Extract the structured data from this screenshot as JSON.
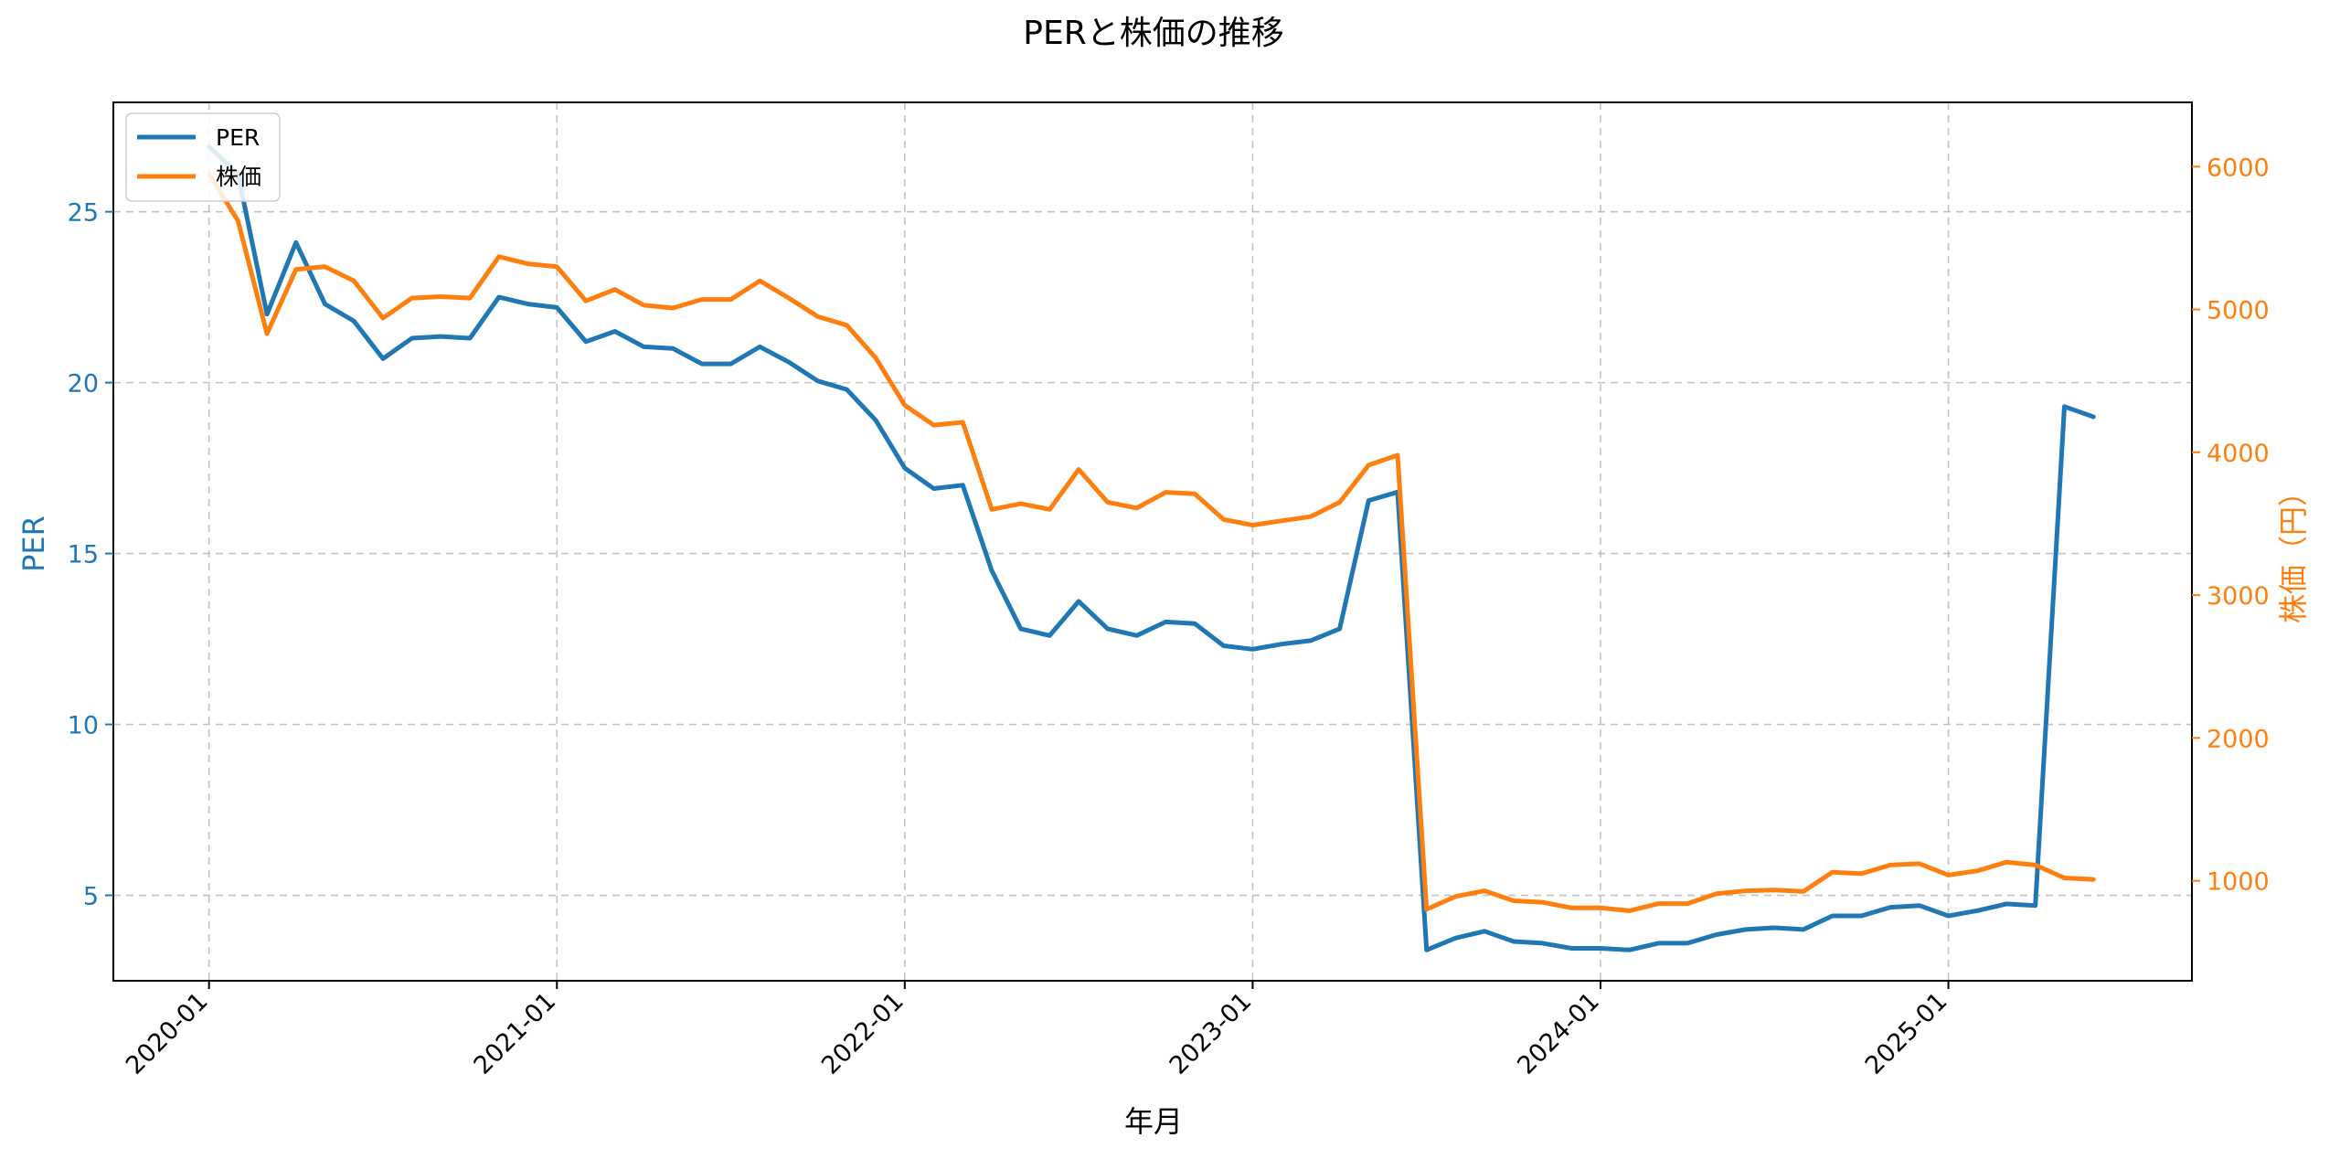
{
  "chart_data": {
    "type": "line",
    "title": "PERと株価の推移",
    "xlabel": "年月",
    "ylabel_left": "PER",
    "ylabel_right": "株価（円）",
    "ylim_left": [
      2.5,
      28.2
    ],
    "ylim_right": [
      300,
      6450
    ],
    "xlim": [
      -3.3,
      68.4
    ],
    "x_ticks": [
      "2020-01",
      "2021-01",
      "2022-01",
      "2023-01",
      "2024-01",
      "2025-01"
    ],
    "x_tick_positions": [
      0,
      12,
      24,
      36,
      48,
      60
    ],
    "y_ticks_left": [
      5,
      10,
      15,
      20,
      25
    ],
    "y_ticks_right": [
      1000,
      2000,
      3000,
      4000,
      5000,
      6000
    ],
    "grid": true,
    "legend_position": "top-left",
    "colors": {
      "per": "#1f77b4",
      "price": "#ff7f0e",
      "axes": "#000000",
      "grid": "#b0b0b0"
    },
    "series": [
      {
        "name": "PER",
        "axis": "left",
        "color": "#1f77b4",
        "values": [
          26.9,
          26.1,
          22.0,
          24.1,
          22.3,
          21.8,
          20.7,
          21.3,
          21.35,
          21.3,
          22.5,
          22.3,
          22.2,
          21.2,
          21.5,
          21.05,
          21.0,
          20.55,
          20.55,
          21.05,
          20.6,
          20.05,
          19.8,
          18.9,
          17.5,
          16.9,
          17.0,
          14.5,
          12.8,
          12.6,
          13.6,
          12.8,
          12.6,
          13.0,
          12.95,
          12.3,
          12.2,
          12.35,
          12.45,
          12.8,
          16.55,
          16.8,
          3.4,
          3.75,
          3.95,
          3.65,
          3.6,
          3.45,
          3.45,
          3.4,
          3.6,
          3.6,
          3.85,
          4.0,
          4.05,
          4.0,
          4.4,
          4.4,
          4.65,
          4.7,
          4.4,
          4.55,
          4.75,
          4.7,
          19.3,
          19.0
        ]
      },
      {
        "name": "株価",
        "axis": "right",
        "color": "#ff7f0e",
        "values": [
          5950,
          5620,
          4830,
          5280,
          5300,
          5200,
          4940,
          5080,
          5090,
          5080,
          5370,
          5320,
          5300,
          5060,
          5140,
          5030,
          5010,
          5070,
          5070,
          5200,
          5080,
          4950,
          4890,
          4660,
          4330,
          4190,
          4210,
          3600,
          3640,
          3600,
          3880,
          3650,
          3610,
          3720,
          3710,
          3530,
          3490,
          3520,
          3550,
          3650,
          3910,
          3980,
          800,
          890,
          930,
          860,
          850,
          810,
          810,
          790,
          840,
          840,
          910,
          930,
          935,
          925,
          1060,
          1050,
          1110,
          1120,
          1040,
          1070,
          1130,
          1110,
          1020,
          1010
        ]
      }
    ]
  }
}
